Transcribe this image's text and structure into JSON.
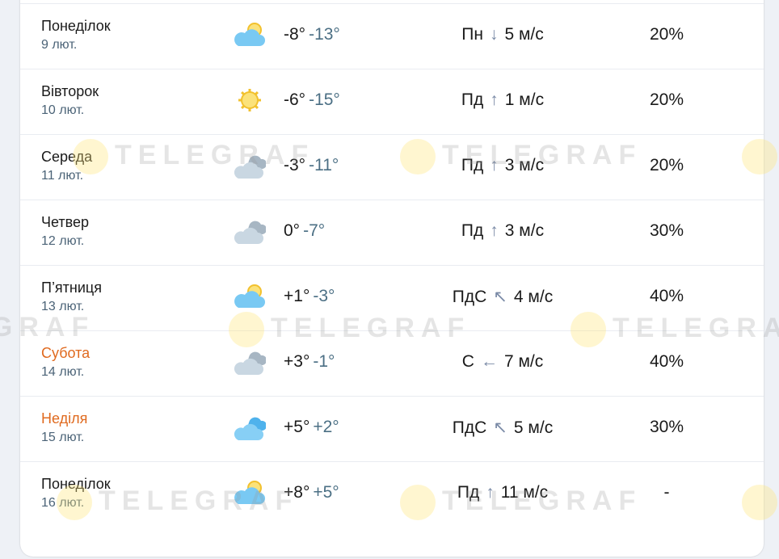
{
  "watermark": "TELEGRAF",
  "forecast": [
    {
      "day": "Понеділок",
      "date": "9 лют.",
      "icon": "partly-cloudy-icon",
      "tmax": "-8°",
      "tmin": "-13°",
      "wind_dir": "Пн",
      "wind_arrow": "↓",
      "wind_speed": "5 м/с",
      "precip": "20%",
      "weekend": false
    },
    {
      "day": "Вівторок",
      "date": "10 лют.",
      "icon": "sun-icon",
      "tmax": "-6°",
      "tmin": "-15°",
      "wind_dir": "Пд",
      "wind_arrow": "↑",
      "wind_speed": "1 м/с",
      "precip": "20%",
      "weekend": false
    },
    {
      "day": "Середа",
      "date": "11 лют.",
      "icon": "cloudy-icon",
      "tmax": "-3°",
      "tmin": "-11°",
      "wind_dir": "Пд",
      "wind_arrow": "↑",
      "wind_speed": "3 м/с",
      "precip": "20%",
      "weekend": false
    },
    {
      "day": "Четвер",
      "date": "12 лют.",
      "icon": "cloudy-icon",
      "tmax": "0°",
      "tmin": "-7°",
      "wind_dir": "Пд",
      "wind_arrow": "↑",
      "wind_speed": "3 м/с",
      "precip": "30%",
      "weekend": false
    },
    {
      "day": "П’ятниця",
      "date": "13 лют.",
      "icon": "partly-cloudy-icon",
      "tmax": "+1°",
      "tmin": "-3°",
      "wind_dir": "ПдС",
      "wind_arrow": "↖",
      "wind_speed": "4 м/с",
      "precip": "40%",
      "weekend": false
    },
    {
      "day": "Субота",
      "date": "14 лют.",
      "icon": "cloudy-icon",
      "tmax": "+3°",
      "tmin": "-1°",
      "wind_dir": "С",
      "wind_arrow": "←",
      "wind_speed": "7 м/с",
      "precip": "40%",
      "weekend": true
    },
    {
      "day": "Неділя",
      "date": "15 лют.",
      "icon": "cloud-icon",
      "tmax": "+5°",
      "tmin": "+2°",
      "wind_dir": "ПдС",
      "wind_arrow": "↖",
      "wind_speed": "5 м/с",
      "precip": "30%",
      "weekend": true
    },
    {
      "day": "Понеділок",
      "date": "16 лют.",
      "icon": "partly-cloudy-icon",
      "tmax": "+8°",
      "tmin": "+5°",
      "wind_dir": "Пд",
      "wind_arrow": "↑",
      "wind_speed": "11 м/с",
      "precip": "-",
      "weekend": false
    }
  ]
}
